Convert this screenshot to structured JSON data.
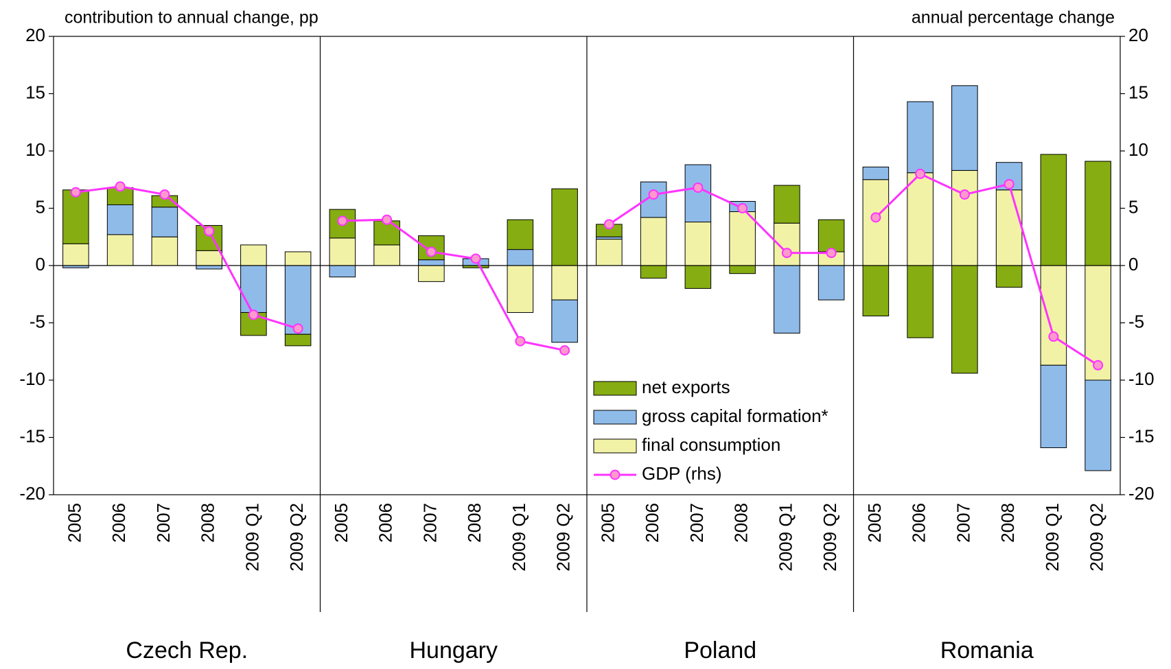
{
  "chart_data": {
    "type": "bar",
    "stacked": true,
    "y_label": "contribution to annual change, pp",
    "y2_label": "annual percentage change",
    "ylim": [
      -20,
      20
    ],
    "yticks": [
      -20,
      -15,
      -10,
      -5,
      0,
      5,
      10,
      15,
      20
    ],
    "y2lim": [
      -20,
      20
    ],
    "y2ticks": [
      -20,
      -15,
      -10,
      -5,
      0,
      5,
      10,
      15,
      20
    ],
    "groups": [
      {
        "label": "Czech Rep.",
        "categories": [
          "2005",
          "2006",
          "2007",
          "2008",
          "2009 Q1",
          "2009 Q2"
        ]
      },
      {
        "label": "Hungary",
        "categories": [
          "2005",
          "2006",
          "2007",
          "2008",
          "2009 Q1",
          "2009 Q2"
        ]
      },
      {
        "label": "Poland",
        "categories": [
          "2005",
          "2006",
          "2007",
          "2008",
          "2009 Q1",
          "2009 Q2"
        ]
      },
      {
        "label": "Romania",
        "categories": [
          "2005",
          "2006",
          "2007",
          "2008",
          "2009 Q1",
          "2009 Q2"
        ]
      }
    ],
    "series": [
      {
        "name": "net exports",
        "color": "#86ad12",
        "values": [
          4.7,
          1.5,
          1.0,
          2.2,
          -2.0,
          -1.0,
          2.5,
          2.1,
          2.1,
          -0.2,
          2.6,
          6.7,
          1.1,
          -1.1,
          -2.0,
          -0.7,
          3.3,
          2.8,
          -4.4,
          -6.3,
          -9.4,
          -1.9,
          9.7,
          9.1
        ]
      },
      {
        "name": "gross capital formation*",
        "color": "#8fbbe9",
        "values": [
          -0.2,
          2.6,
          2.6,
          -0.3,
          -4.1,
          -6.0,
          -1.0,
          0,
          0.5,
          0.6,
          1.4,
          -3.7,
          0.2,
          3.1,
          5.0,
          0.9,
          -5.9,
          -3.0,
          1.1,
          6.2,
          7.4,
          2.4,
          -7.2,
          -7.9
        ]
      },
      {
        "name": "final consumption",
        "color": "#f2f2a6",
        "values": [
          1.9,
          2.7,
          2.5,
          1.3,
          1.8,
          1.2,
          2.4,
          1.8,
          -1.4,
          0,
          -4.1,
          -3.0,
          2.3,
          4.2,
          3.8,
          4.7,
          3.7,
          1.2,
          7.5,
          8.1,
          8.3,
          6.6,
          -8.7,
          -10.0
        ]
      },
      {
        "name": "GDP (rhs)",
        "type": "line",
        "axis": "y2",
        "color": "#ff33ff",
        "marker_color": "#ff99cc",
        "values": [
          6.4,
          6.9,
          6.2,
          3.0,
          -4.3,
          -5.5,
          3.9,
          4.0,
          1.2,
          0.6,
          -6.6,
          -7.4,
          3.6,
          6.2,
          6.8,
          5.0,
          1.1,
          1.1,
          4.2,
          8.0,
          6.2,
          7.1,
          -6.2,
          -8.7
        ]
      }
    ],
    "legend": "center"
  }
}
